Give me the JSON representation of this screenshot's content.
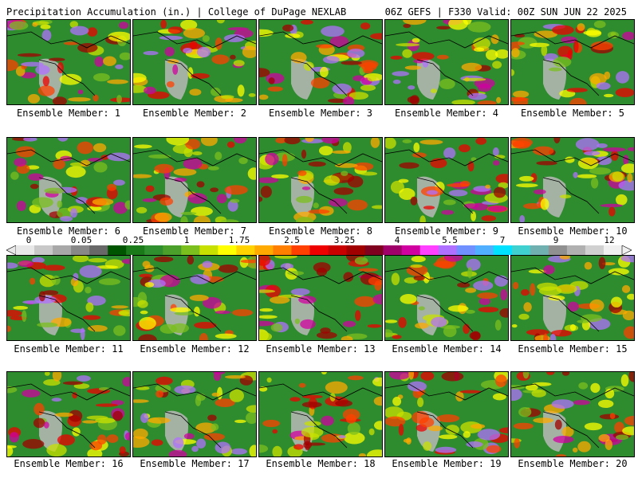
{
  "header": {
    "left": "Precipitation Accumulation (in.) | College of DuPage NEXLAB",
    "right": "06Z GEFS | F330 Valid: 00Z SUN JUN 22 2025"
  },
  "members": [
    {
      "label": "Ensemble Member: 1"
    },
    {
      "label": "Ensemble Member: 2"
    },
    {
      "label": "Ensemble Member: 3"
    },
    {
      "label": "Ensemble Member: 4"
    },
    {
      "label": "Ensemble Member: 5"
    },
    {
      "label": "Ensemble Member: 6"
    },
    {
      "label": "Ensemble Member: 7"
    },
    {
      "label": "Ensemble Member: 8"
    },
    {
      "label": "Ensemble Member: 9"
    },
    {
      "label": "Ensemble Member: 10"
    },
    {
      "label": "Ensemble Member: 11"
    },
    {
      "label": "Ensemble Member: 12"
    },
    {
      "label": "Ensemble Member: 13"
    },
    {
      "label": "Ensemble Member: 14"
    },
    {
      "label": "Ensemble Member: 15"
    },
    {
      "label": "Ensemble Member: 16"
    },
    {
      "label": "Ensemble Member: 17"
    },
    {
      "label": "Ensemble Member: 18"
    },
    {
      "label": "Ensemble Member: 19"
    },
    {
      "label": "Ensemble Member: 20"
    }
  ],
  "colorbar": {
    "tick_labels": [
      "0",
      "0.05",
      "0.25",
      "1",
      "1.75",
      "2.5",
      "3.25",
      "4",
      "5.5",
      "7",
      "9",
      "12"
    ],
    "colors": [
      "#e8e8e8",
      "#c8c8c8",
      "#a8a8a8",
      "#888888",
      "#686868",
      "#005500",
      "#1a7a1a",
      "#2f8f2f",
      "#4aa02a",
      "#7bbf1f",
      "#c8e000",
      "#ffff00",
      "#ffd200",
      "#ffaa00",
      "#ff8000",
      "#ff4000",
      "#ee0000",
      "#c80000",
      "#a00000",
      "#800020",
      "#a0006a",
      "#d000a0",
      "#ff40ff",
      "#b070ff",
      "#7090ff",
      "#50b0ff",
      "#00e0ff",
      "#40d0d0",
      "#70b0b0",
      "#909090",
      "#b0b0b0",
      "#d0d0d0",
      "#f0f0f0"
    ]
  }
}
